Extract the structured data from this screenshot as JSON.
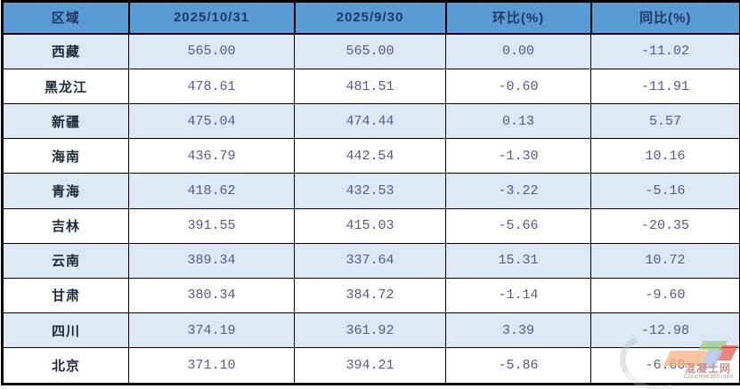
{
  "table": {
    "columns": [
      "区域",
      "2025/10/31",
      "2025/9/30",
      "环比(%)",
      "同比(%)"
    ],
    "rows": [
      {
        "region": "西藏",
        "current": "565.00",
        "previous": "565.00",
        "mom": "0.00",
        "yoy": "-11.02"
      },
      {
        "region": "黑龙江",
        "current": "478.61",
        "previous": "481.51",
        "mom": "-0.60",
        "yoy": "-11.91"
      },
      {
        "region": "新疆",
        "current": "475.04",
        "previous": "474.44",
        "mom": "0.13",
        "yoy": "5.57"
      },
      {
        "region": "海南",
        "current": "436.79",
        "previous": "442.54",
        "mom": "-1.30",
        "yoy": "10.16"
      },
      {
        "region": "青海",
        "current": "418.62",
        "previous": "432.53",
        "mom": "-3.22",
        "yoy": "-5.16"
      },
      {
        "region": "吉林",
        "current": "391.55",
        "previous": "415.03",
        "mom": "-5.66",
        "yoy": "-20.35"
      },
      {
        "region": "云南",
        "current": "389.34",
        "previous": "337.64",
        "mom": "15.31",
        "yoy": "10.72"
      },
      {
        "region": "甘肃",
        "current": "380.34",
        "previous": "384.72",
        "mom": "-1.14",
        "yoy": "-9.60"
      },
      {
        "region": "四川",
        "current": "374.19",
        "previous": "361.92",
        "mom": "3.39",
        "yoy": "-12.98"
      },
      {
        "region": "北京",
        "current": "371.10",
        "previous": "394.21",
        "mom": "-5.86",
        "yoy": "-6.60"
      }
    ]
  },
  "watermark": {
    "name": "混凝土网",
    "url": "Concrete365.com"
  },
  "colors": {
    "header_bg": "#5B9BD5",
    "header_text": "#1F3864",
    "row_alt_bg": "#DCE9F5",
    "row_bg": "#FFFFFF",
    "value_text": "#5C548F",
    "region_text": "#1C2A3A",
    "border": "#000000"
  },
  "chart_data": {
    "type": "table",
    "columns": [
      "区域",
      "2025/10/31",
      "2025/9/30",
      "环比(%)",
      "同比(%)"
    ],
    "rows": [
      [
        "西藏",
        565.0,
        565.0,
        0.0,
        -11.02
      ],
      [
        "黑龙江",
        478.61,
        481.51,
        -0.6,
        -11.91
      ],
      [
        "新疆",
        475.04,
        474.44,
        0.13,
        5.57
      ],
      [
        "海南",
        436.79,
        442.54,
        -1.3,
        10.16
      ],
      [
        "青海",
        418.62,
        432.53,
        -3.22,
        -5.16
      ],
      [
        "吉林",
        391.55,
        415.03,
        -5.66,
        -20.35
      ],
      [
        "云南",
        389.34,
        337.64,
        15.31,
        10.72
      ],
      [
        "甘肃",
        380.34,
        384.72,
        -1.14,
        -9.6
      ],
      [
        "四川",
        374.19,
        361.92,
        3.39,
        -12.98
      ],
      [
        "北京",
        371.1,
        394.21,
        -5.86,
        -6.6
      ]
    ],
    "layout_hints": {
      "header_fill": "#5B9BD5",
      "alternating_row_fill": "#DCE9F5",
      "grid": true
    }
  }
}
